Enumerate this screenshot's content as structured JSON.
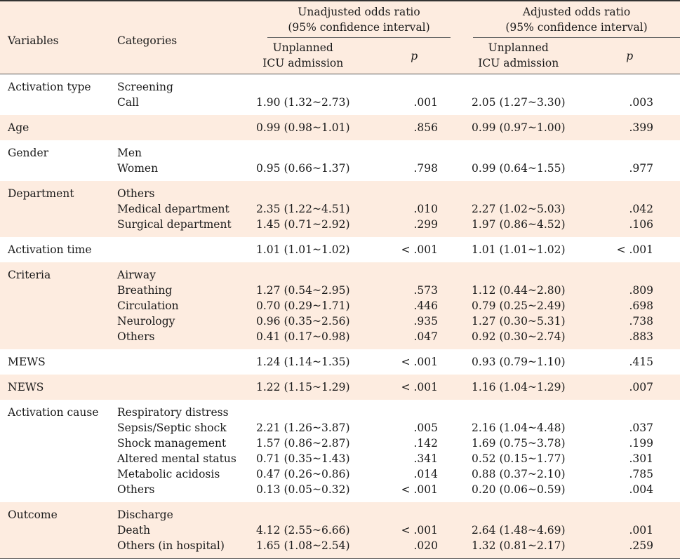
{
  "header": {
    "variables": "Variables",
    "categories": "Categories",
    "unadjusted_l1": "Unadjusted odds ratio",
    "unadjusted_l2": "(95% confidence interval)",
    "adjusted_l1": "Adjusted odds ratio",
    "adjusted_l2": "(95% confidence interval)",
    "unplanned_l1": "Unplanned",
    "unplanned_l2": "ICU admission",
    "p": "p"
  },
  "groups": [
    {
      "variable": "Activation type",
      "shade": false,
      "rows": [
        {
          "cat": "Screening",
          "u": "",
          "up": "",
          "a": "",
          "ap": ""
        },
        {
          "cat": "Call",
          "u": "1.90 (1.32~2.73)",
          "up": ".001",
          "a": "2.05 (1.27~3.30)",
          "ap": ".003"
        }
      ]
    },
    {
      "variable": "Age",
      "shade": true,
      "rows": [
        {
          "cat": "",
          "u": "0.99 (0.98~1.01)",
          "up": ".856",
          "a": "0.99 (0.97~1.00)",
          "ap": ".399"
        }
      ]
    },
    {
      "variable": "Gender",
      "shade": false,
      "rows": [
        {
          "cat": "Men",
          "u": "",
          "up": "",
          "a": "",
          "ap": ""
        },
        {
          "cat": "Women",
          "u": "0.95 (0.66~1.37)",
          "up": ".798",
          "a": "0.99 (0.64~1.55)",
          "ap": ".977"
        }
      ]
    },
    {
      "variable": "Department",
      "shade": true,
      "rows": [
        {
          "cat": "Others",
          "u": "",
          "up": "",
          "a": "",
          "ap": ""
        },
        {
          "cat": "Medical department",
          "u": "2.35 (1.22~4.51)",
          "up": ".010",
          "a": "2.27 (1.02~5.03)",
          "ap": ".042"
        },
        {
          "cat": "Surgical department",
          "u": "1.45 (0.71~2.92)",
          "up": ".299",
          "a": "1.97 (0.86~4.52)",
          "ap": ".106"
        }
      ]
    },
    {
      "variable": "Activation time",
      "shade": false,
      "rows": [
        {
          "cat": "",
          "u": "1.01 (1.01~1.02)",
          "up": "< .001",
          "a": "1.01 (1.01~1.02)",
          "ap": "< .001"
        }
      ]
    },
    {
      "variable": "Criteria",
      "shade": true,
      "rows": [
        {
          "cat": "Airway",
          "u": "",
          "up": "",
          "a": "",
          "ap": ""
        },
        {
          "cat": "Breathing",
          "u": "1.27 (0.54~2.95)",
          "up": ".573",
          "a": "1.12 (0.44~2.80)",
          "ap": ".809"
        },
        {
          "cat": "Circulation",
          "u": "0.70 (0.29~1.71)",
          "up": ".446",
          "a": "0.79 (0.25~2.49)",
          "ap": ".698"
        },
        {
          "cat": "Neurology",
          "u": "0.96 (0.35~2.56)",
          "up": ".935",
          "a": "1.27 (0.30~5.31)",
          "ap": ".738"
        },
        {
          "cat": "Others",
          "u": "0.41 (0.17~0.98)",
          "up": ".047",
          "a": "0.92 (0.30~2.74)",
          "ap": ".883"
        }
      ]
    },
    {
      "variable": "MEWS",
      "shade": false,
      "rows": [
        {
          "cat": "",
          "u": "1.24 (1.14~1.35)",
          "up": "< .001",
          "a": "0.93 (0.79~1.10)",
          "ap": ".415"
        }
      ]
    },
    {
      "variable": "NEWS",
      "shade": true,
      "rows": [
        {
          "cat": "",
          "u": "1.22 (1.15~1.29)",
          "up": "< .001",
          "a": "1.16 (1.04~1.29)",
          "ap": ".007"
        }
      ]
    },
    {
      "variable": "Activation cause",
      "shade": false,
      "rows": [
        {
          "cat": "Respiratory distress",
          "u": "",
          "up": "",
          "a": "",
          "ap": ""
        },
        {
          "cat": "Sepsis/Septic shock",
          "u": "2.21 (1.26~3.87)",
          "up": ".005",
          "a": "2.16 (1.04~4.48)",
          "ap": ".037"
        },
        {
          "cat": "Shock management",
          "u": "1.57 (0.86~2.87)",
          "up": ".142",
          "a": "1.69 (0.75~3.78)",
          "ap": ".199"
        },
        {
          "cat": "Altered mental status",
          "u": "0.71 (0.35~1.43)",
          "up": ".341",
          "a": "0.52 (0.15~1.77)",
          "ap": ".301"
        },
        {
          "cat": "Metabolic acidosis",
          "u": "0.47 (0.26~0.86)",
          "up": ".014",
          "a": "0.88 (0.37~2.10)",
          "ap": ".785"
        },
        {
          "cat": "Others",
          "u": "0.13 (0.05~0.32)",
          "up": "< .001",
          "a": "0.20 (0.06~0.59)",
          "ap": ".004"
        }
      ]
    },
    {
      "variable": "Outcome",
      "shade": true,
      "rows": [
        {
          "cat": "Discharge",
          "u": "",
          "up": "",
          "a": "",
          "ap": ""
        },
        {
          "cat": "Death",
          "u": "4.12 (2.55~6.66)",
          "up": "< .001",
          "a": "2.64 (1.48~4.69)",
          "ap": ".001"
        },
        {
          "cat": "Others (in hospital)",
          "u": "1.65 (1.08~2.54)",
          "up": ".020",
          "a": "1.32 (0.81~2.17)",
          "ap": ".259"
        }
      ]
    }
  ]
}
